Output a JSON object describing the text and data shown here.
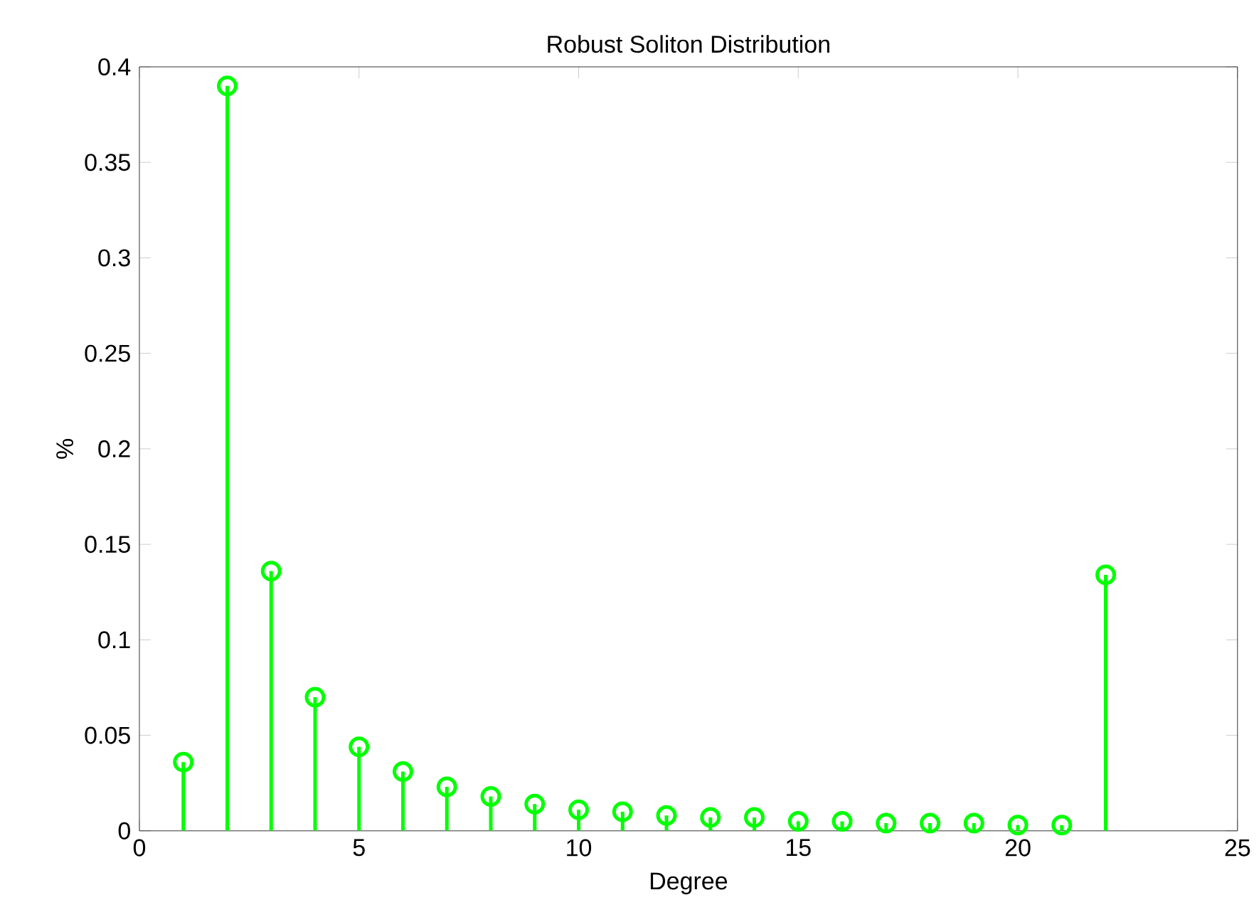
{
  "chart_data": {
    "type": "lollipop",
    "title": "Robust Soliton Distribution",
    "xlabel": "Degree",
    "ylabel": "%",
    "x": [
      1,
      2,
      3,
      4,
      5,
      6,
      7,
      8,
      9,
      10,
      11,
      12,
      13,
      14,
      15,
      16,
      17,
      18,
      19,
      20,
      21,
      22
    ],
    "values": [
      0.036,
      0.39,
      0.136,
      0.07,
      0.044,
      0.031,
      0.023,
      0.018,
      0.014,
      0.011,
      0.01,
      0.008,
      0.007,
      0.007,
      0.005,
      0.005,
      0.004,
      0.004,
      0.004,
      0.003,
      0.003,
      0.134
    ],
    "color": "#00ff00",
    "marker": "circle",
    "xlim": [
      0,
      25
    ],
    "xticks": [
      0,
      5,
      10,
      15,
      20,
      25
    ],
    "ylim": [
      0,
      0.4
    ],
    "yticks": [
      0,
      0.05,
      0.1,
      0.15,
      0.2,
      0.25,
      0.3,
      0.35,
      0.4
    ]
  }
}
